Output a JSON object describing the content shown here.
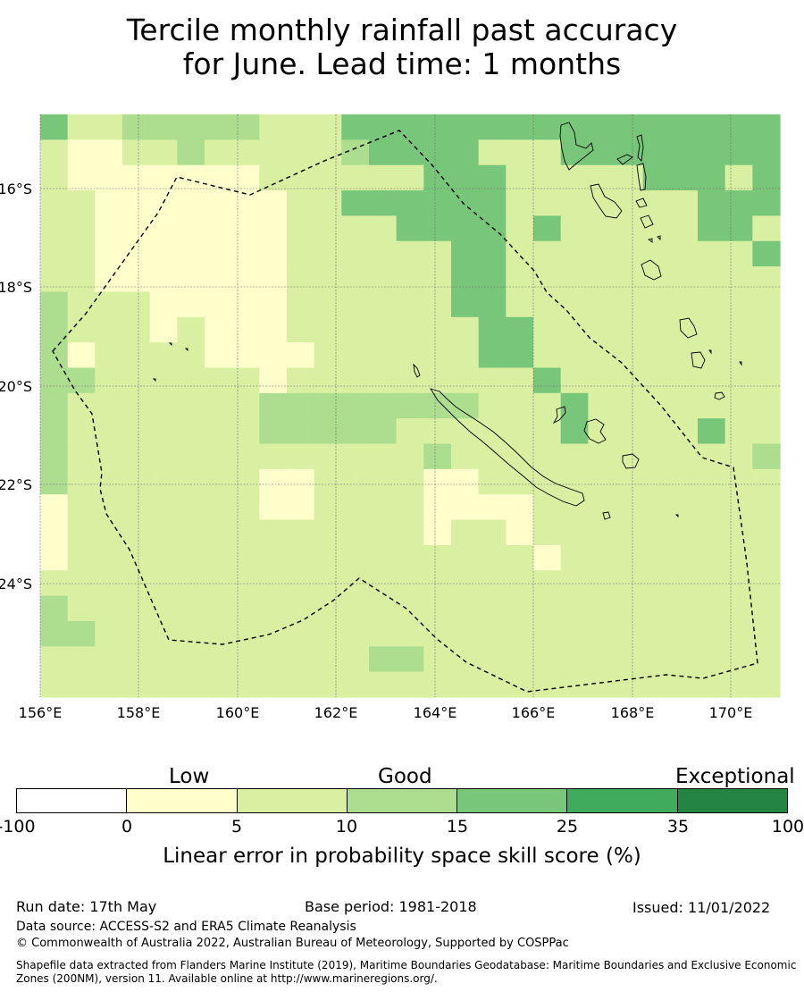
{
  "title": {
    "line1": "Tercile monthly rainfall past accuracy",
    "line2": "for June. Lead time: 1 months"
  },
  "map": {
    "x_ticks": [
      "156°E",
      "158°E",
      "160°E",
      "162°E",
      "164°E",
      "166°E",
      "168°E",
      "170°E"
    ],
    "y_ticks": [
      "16°S",
      "18°S",
      "20°S",
      "22°S",
      "24°S"
    ],
    "gridlines": true,
    "grid_rows": [
      "DCCBBBBBCCCDDDDDDDDDDDDDDDD",
      "CEECCBCCCCCBDDDDCCCDDDDDDDD",
      "CEEEEEEECCCCCCDDDCCCCCDDDCD",
      "CCEEEEEEECCDDDDDDCCCCCCCDDD",
      "CCEEEEEEECCCCDDDDCDCCCCCDDC",
      "CCEEEEEEECCCCCCDDCCCCCCCCCD",
      "CCEEEEEEECCCCCCDDCCCCCCCCCC",
      "BCCCEEEEECCCCCCDDCCCCCCCCCC",
      "BCCCECEEECCCCCCCDDCCCCCCCCC",
      "BECCCCEEEECCCCCCDDCCCCCCCCC",
      "BBCCCCCCECCCCCCCCCDCCCCCCCC",
      "BCCCCCCCBBBBBBBBCCCDCCCCCCC",
      "BCCCCCCCBBBBBCCCCCCDCCCCDCC",
      "BCCCCCCCCCCCCCBCCCCCCCCCCCB",
      "BCCCCCCCEECCCCEECCCCCCCCCCC",
      "ECCCCCCCEECCCCEEEECCCCCCCCC",
      "ECCCCCCCCCCCCCECCECCCCCCCCC",
      "ECCCCCCCCCCCCCCCCCECCCCCCCC",
      "CCCCCCCCCCCCCCCCCCCCCCCCCCC",
      "BCCCCCCCCCCCCCCCCCCCCCCCCCC",
      "BBCCCCCCCCCCCCCCCCCCCCCCCCC",
      "CCCCCCCCCCCCBBCCCCCCCCCCCCC",
      "CCCCCCCCCCCCCCCCCCCCCCCCCCC"
    ]
  },
  "colorbar": {
    "segments": [
      {
        "from": "-100",
        "to": "0",
        "color": "#ffffff"
      },
      {
        "from": "0",
        "to": "5",
        "color": "#ffffcc"
      },
      {
        "from": "5",
        "to": "10",
        "color": "#d9f0a3"
      },
      {
        "from": "10",
        "to": "15",
        "color": "#addd8e"
      },
      {
        "from": "15",
        "to": "25",
        "color": "#78c679"
      },
      {
        "from": "25",
        "to": "35",
        "color": "#41ab5d"
      },
      {
        "from": "35",
        "to": "100",
        "color": "#238443"
      }
    ],
    "ticks": [
      "-100",
      "0",
      "5",
      "10",
      "15",
      "25",
      "35",
      "100"
    ],
    "categories": [
      "Low",
      "Good",
      "Exceptional"
    ],
    "label": "Linear error in probability space skill score (%)"
  },
  "footer": {
    "run_date": "Run date: 17th May",
    "base_period": "Base period: 1981-2018",
    "issued": "Issued: 11/01/2022",
    "data_source": "Data source: ACCESS-S2 and ERA5 Climate Reanalysis",
    "copyright": "© Commonwealth of Australia 2022, Australian Bureau of Meteorology, Supported by COSPPac",
    "shapefile_line1": "Shapefile data extracted from Flanders Marine Institute (2019), Maritime Boundaries Geodatabase: Maritime Boundaries and Exclusive Economic",
    "shapefile_line2": "Zones (200NM), version 11. Available online at http://www.marineregions.org/."
  }
}
